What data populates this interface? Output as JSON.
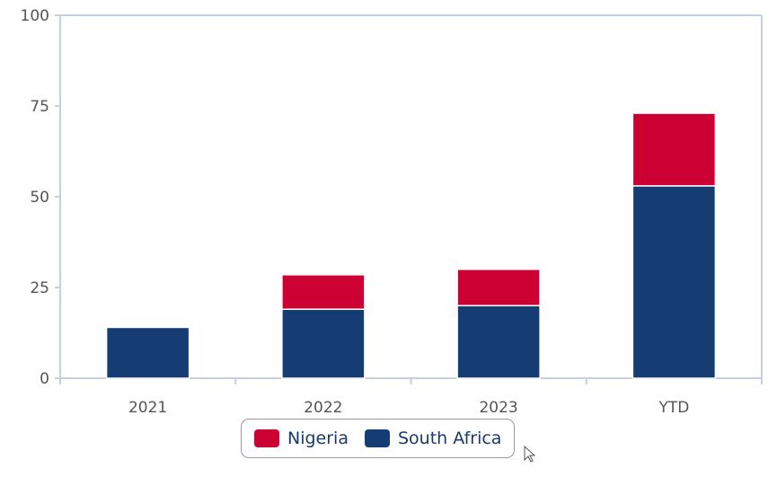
{
  "chart_data": {
    "type": "bar",
    "stacked": true,
    "categories": [
      "2021",
      "2022",
      "2023",
      "YTD"
    ],
    "series": [
      {
        "name": "South Africa",
        "color": "#163d73",
        "values": [
          14,
          19,
          20,
          53
        ]
      },
      {
        "name": "Nigeria",
        "color": "#cc0033",
        "values": [
          0,
          9.5,
          10,
          20
        ]
      }
    ],
    "ylim": [
      0,
      100
    ],
    "yticks": [
      "0",
      "25",
      "50",
      "75",
      "100"
    ],
    "title": "",
    "xlabel": "",
    "ylabel": "",
    "grid": false,
    "legend_placement": "bottom-center",
    "legend_order": [
      "Nigeria",
      "South Africa"
    ]
  },
  "legend": {
    "items": [
      {
        "label": "Nigeria",
        "color": "#cc0033"
      },
      {
        "label": "South Africa",
        "color": "#163d73"
      }
    ]
  },
  "cursor": {
    "icon": "mouse-pointer-icon"
  }
}
